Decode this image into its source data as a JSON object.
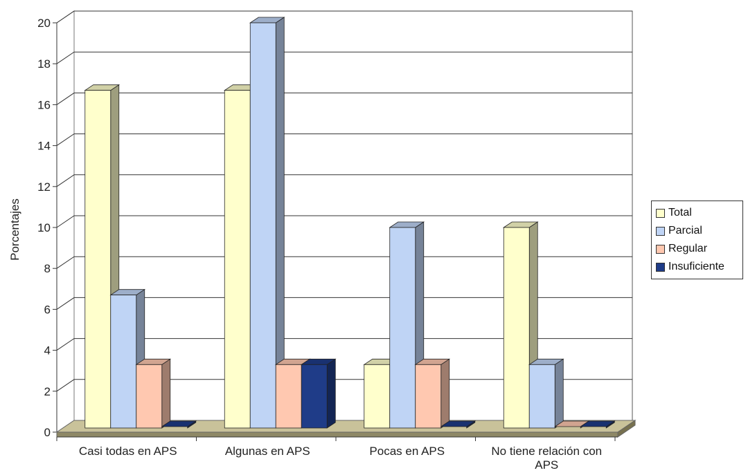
{
  "chart_data": {
    "type": "bar",
    "ylabel": "Porcentajes",
    "xlabel": "",
    "ylim": [
      0,
      20
    ],
    "yticks": [
      0,
      2,
      4,
      6,
      8,
      10,
      12,
      14,
      16,
      18,
      20
    ],
    "categories": [
      [
        "Casi todas en APS"
      ],
      [
        "Algunas en APS"
      ],
      [
        "Pocas en APS"
      ],
      [
        "No tiene relación con",
        "APS"
      ]
    ],
    "series": [
      {
        "name": "Total",
        "color": "#FFFFCC",
        "values": [
          16.7,
          16.7,
          3.3,
          10.0
        ]
      },
      {
        "name": "Parcial",
        "color": "#BFD4F5",
        "values": [
          6.7,
          20.0,
          10.0,
          3.3
        ]
      },
      {
        "name": "Regular",
        "color": "#FFC8B0",
        "values": [
          3.3,
          3.3,
          3.3,
          0
        ]
      },
      {
        "name": "Insuficiente",
        "color": "#1F3C88",
        "values": [
          0,
          3.3,
          0,
          0
        ]
      }
    ],
    "grid": true,
    "legend_position": "right"
  }
}
